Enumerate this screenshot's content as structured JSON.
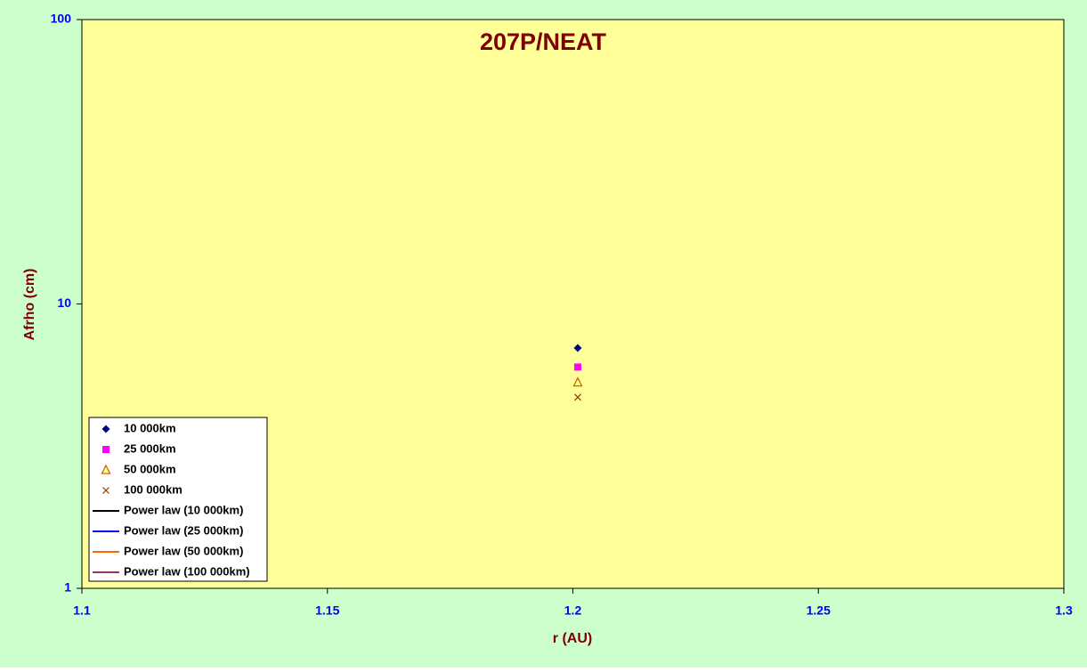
{
  "chart_data": {
    "type": "scatter",
    "title": "207P/NEAT",
    "x_label": "r (AU)",
    "y_label": "Afrho (cm)",
    "xlim": [
      1.1,
      1.3
    ],
    "xticks": [
      1.1,
      1.15,
      1.2,
      1.25,
      1.3
    ],
    "ylim": [
      1,
      100
    ],
    "yticks": [
      1,
      10,
      100
    ],
    "y_scale": "log",
    "legend": "lower left",
    "background": "#ccffcc",
    "plot_background": "#ffff99",
    "series": [
      {
        "name": "10 000km",
        "color": "#000080",
        "marker": "diamond",
        "x": [
          1.201
        ],
        "values": [
          7.0
        ]
      },
      {
        "name": "25 000km",
        "color": "#ff00ff",
        "marker": "square",
        "x": [
          1.201
        ],
        "values": [
          6.0
        ]
      },
      {
        "name": "50 000km",
        "color": "#cc6600",
        "marker": "triangle",
        "x": [
          1.201
        ],
        "values": [
          5.3
        ]
      },
      {
        "name": "100 000km",
        "color": "#993300",
        "marker": "cross",
        "x": [
          1.201
        ],
        "values": [
          4.7
        ]
      },
      {
        "name": "Power law (10 000km)",
        "color": "#000000",
        "marker": "line"
      },
      {
        "name": "Power law (25 000km)",
        "color": "#0000ff",
        "marker": "line"
      },
      {
        "name": "Power law (50 000km)",
        "color": "#ff6600",
        "marker": "line"
      },
      {
        "name": "Power law (100 000km)",
        "color": "#993366",
        "marker": "line"
      }
    ]
  }
}
